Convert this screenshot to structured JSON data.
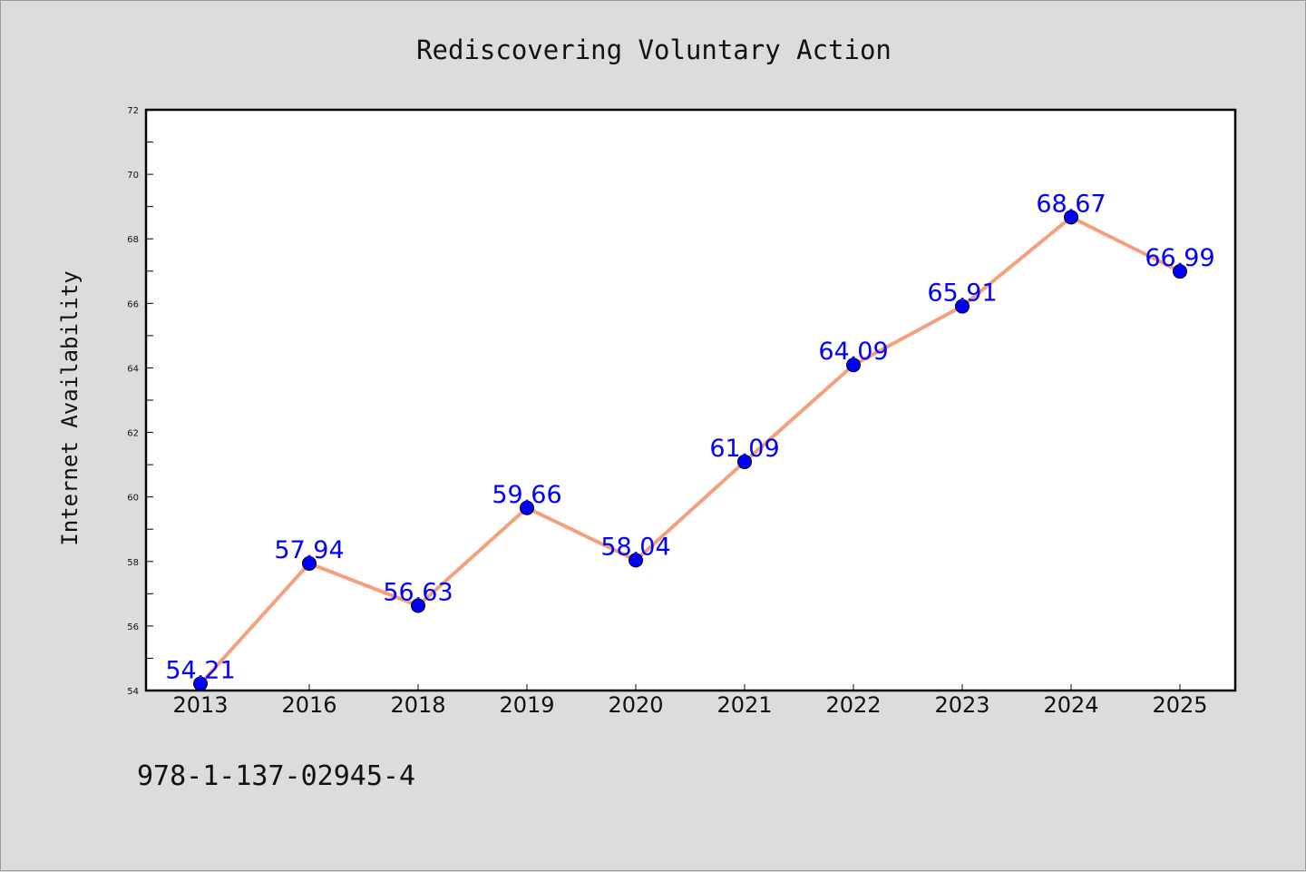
{
  "chart_data": {
    "type": "line",
    "title": "Rediscovering Voluntary Action",
    "xlabel": "",
    "ylabel": "Internet Availability",
    "categories": [
      "2013",
      "2016",
      "2018",
      "2019",
      "2020",
      "2021",
      "2022",
      "2023",
      "2024",
      "2025"
    ],
    "series": [
      {
        "values": [
          54.21,
          57.94,
          56.63,
          59.66,
          58.04,
          61.09,
          64.09,
          65.91,
          68.67,
          66.99
        ],
        "data_labels": [
          "54.21",
          "57.94",
          "56.63",
          "59.66",
          "58.04",
          "61.09",
          "64.09",
          "65.91",
          "68.67",
          "66.99"
        ],
        "line_color": "#f4a07e",
        "marker_color": "#0000ff"
      }
    ],
    "ylim": [
      54,
      72
    ],
    "yticks": [
      54,
      56,
      58,
      60,
      62,
      64,
      66,
      68,
      70,
      72
    ],
    "grid": false,
    "legend": "none"
  },
  "footer": {
    "isbn": "978-1-137-02945-4"
  }
}
